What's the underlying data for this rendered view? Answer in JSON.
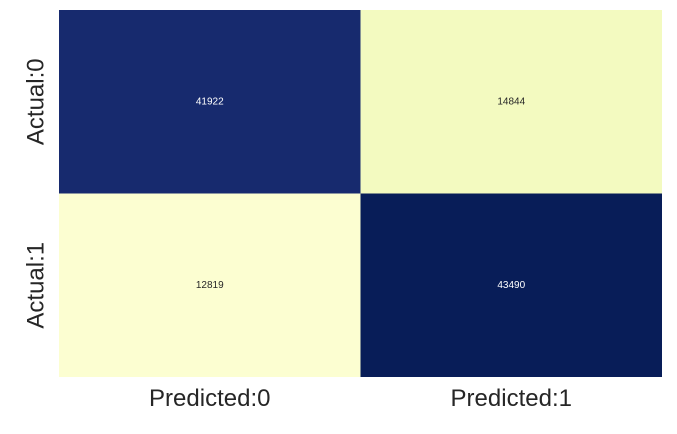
{
  "chart_data": {
    "type": "heatmap",
    "title": "",
    "xlabel": "",
    "ylabel": "",
    "x_categories": [
      "Predicted:0",
      "Predicted:1"
    ],
    "y_categories": [
      "Actual:0",
      "Actual:1"
    ],
    "values": [
      [
        41922,
        14844
      ],
      [
        12819,
        43490
      ]
    ],
    "value_range": [
      12819,
      43490
    ],
    "colormap": "YlGnBu",
    "colorbar": false,
    "grid": false,
    "legend": "none",
    "annotations": true
  },
  "colors": {
    "cell_0_0": "#172a6e",
    "cell_0_1": "#f3fac0",
    "cell_1_0": "#fcfed1",
    "cell_1_1": "#081d58",
    "annotation_on_dark": "#ffffff",
    "annotation_on_light": "#262626",
    "tick_label": "#262626"
  }
}
